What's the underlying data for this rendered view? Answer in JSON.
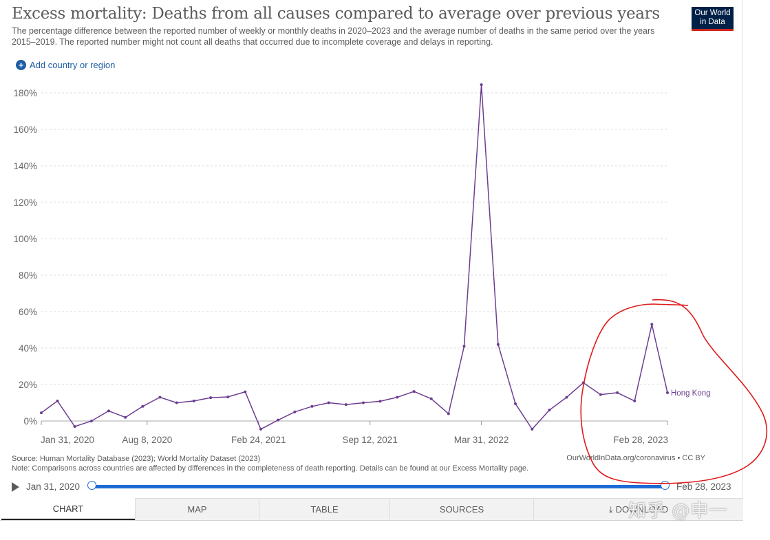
{
  "header": {
    "title": "Excess mortality: Deaths from all causes compared to average over previous years",
    "subtitle": "The percentage difference between the reported number of weekly or monthly deaths in 2020–2023 and the average number of deaths in the same period over the years 2015–2019. The reported number might not count all deaths that occurred due to incomplete coverage and delays in reporting.",
    "logo_line1": "Our World",
    "logo_line2": "in Data",
    "add_country_label": "Add country or region"
  },
  "chart_data": {
    "type": "line",
    "title": "Excess mortality: Deaths from all causes compared to average over previous years",
    "ylim": [
      -2,
      185
    ],
    "yticks": [
      0,
      20,
      40,
      60,
      80,
      100,
      120,
      140,
      160,
      180
    ],
    "ytick_labels": [
      "0%",
      "20%",
      "40%",
      "60%",
      "80%",
      "100%",
      "120%",
      "140%",
      "160%",
      "180%"
    ],
    "xticks": [
      "Jan 31, 2020",
      "Aug 8, 2020",
      "Feb 24, 2021",
      "Sep 12, 2021",
      "Mar 31, 2022",
      "Feb 28, 2023"
    ],
    "xtick_dates": [
      "2020-01-31",
      "2020-08-08",
      "2021-02-24",
      "2021-09-12",
      "2022-03-31",
      "2023-02-28"
    ],
    "grid": true,
    "series": [
      {
        "name": "Hong Kong",
        "color": "#6d3e91",
        "x": [
          "2020-01-31",
          "2020-02-29",
          "2020-03-31",
          "2020-04-30",
          "2020-05-31",
          "2020-06-30",
          "2020-07-31",
          "2020-08-31",
          "2020-09-30",
          "2020-10-31",
          "2020-11-30",
          "2020-12-31",
          "2021-01-31",
          "2021-02-28",
          "2021-03-31",
          "2021-04-30",
          "2021-05-31",
          "2021-06-30",
          "2021-07-31",
          "2021-08-31",
          "2021-09-30",
          "2021-10-31",
          "2021-11-30",
          "2021-12-31",
          "2022-01-31",
          "2022-02-28",
          "2022-03-31",
          "2022-04-30",
          "2022-05-31",
          "2022-06-30",
          "2022-07-31",
          "2022-08-31",
          "2022-09-30",
          "2022-10-31",
          "2022-11-30",
          "2022-12-31",
          "2023-01-31",
          "2023-02-28"
        ],
        "values": [
          4.5,
          11,
          -3,
          0,
          5.5,
          2,
          8,
          13,
          10,
          11,
          12.8,
          13.2,
          16,
          -4.5,
          0.5,
          5,
          8,
          10,
          9,
          10,
          10.8,
          13,
          16.2,
          12.2,
          4,
          41,
          184.5,
          42,
          9.5,
          -4.5,
          6,
          13,
          21,
          14.5,
          15.5,
          11,
          53,
          15.5
        ]
      }
    ]
  },
  "footer": {
    "source": "Source: Human Mortality Database (2023); World Mortality Dataset (2023)",
    "note": "Note: Comparisons across countries are affected by differences in the completeness of death reporting. Details can be found at our Excess Mortality page.",
    "license": "OurWorldInData.org/coronavirus • CC BY"
  },
  "timeline": {
    "start": "Jan 31, 2020",
    "end": "Feb 28, 2023"
  },
  "tabs": [
    {
      "label": "CHART",
      "active": true
    },
    {
      "label": "MAP",
      "active": false
    },
    {
      "label": "TABLE",
      "active": false
    },
    {
      "label": "SOURCES",
      "active": false
    },
    {
      "label": "DOWNLOAD",
      "active": false
    }
  ],
  "annotation": {
    "color": "#e0191b"
  },
  "watermark": {
    "text": "知乎 @申一"
  }
}
